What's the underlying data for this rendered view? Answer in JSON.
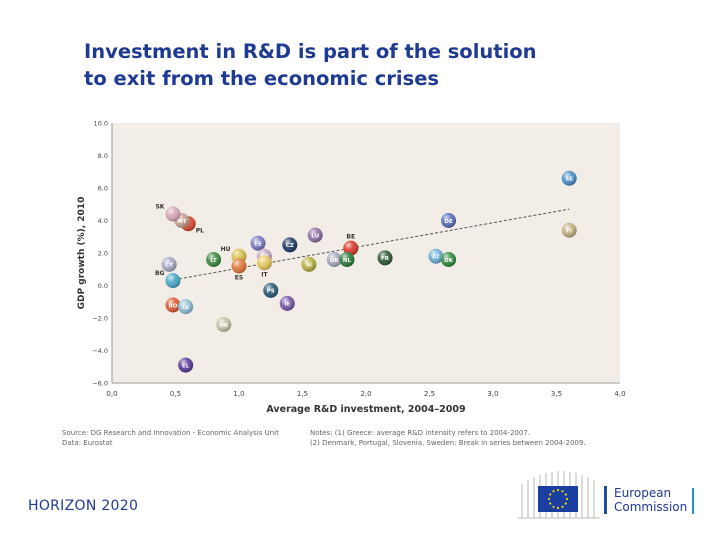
{
  "slide": {
    "title_line1": "Investment in R&D is part of the solution",
    "title_line2": "to exit from the economic crises"
  },
  "chart_data": {
    "type": "scatter",
    "title": "",
    "xlabel": "Average R&D investment, 2004–2009",
    "ylabel": "GDP growth (%), 2010",
    "xlim": [
      0,
      4
    ],
    "ylim": [
      -6,
      10
    ],
    "x_ticks": [
      "0,0",
      "0,5",
      "1,0",
      "1,5",
      "2,0",
      "2,5",
      "3,0",
      "3,5",
      "4,0"
    ],
    "y_ticks": [
      "−6.0",
      "−4.0",
      "−2.0",
      "0.0",
      "2.0",
      "4.0",
      "6.0",
      "8.0",
      "10.0"
    ],
    "grid": false,
    "legend": "none",
    "trendline": {
      "x": [
        0.45,
        3.6
      ],
      "y": [
        0.3,
        4.7
      ]
    },
    "points": [
      {
        "label": "SE",
        "x": 3.6,
        "y": 6.6,
        "color": "#4a90c8",
        "label_pos": "inside"
      },
      {
        "label": "FI",
        "x": 3.6,
        "y": 3.4,
        "color": "#c2b080",
        "label_pos": "inside"
      },
      {
        "label": "DE",
        "x": 2.65,
        "y": 4.0,
        "color": "#5870b8",
        "label_pos": "inside"
      },
      {
        "label": "AT",
        "x": 2.55,
        "y": 1.8,
        "color": "#6cb0d8",
        "label_pos": "inside"
      },
      {
        "label": "DK",
        "x": 2.65,
        "y": 1.6,
        "color": "#2e8a3e",
        "label_pos": "inside"
      },
      {
        "label": "FR",
        "x": 2.15,
        "y": 1.7,
        "color": "#2f5a38",
        "label_pos": "inside"
      },
      {
        "label": "BE",
        "x": 1.88,
        "y": 2.3,
        "color": "#d83828",
        "label_pos": "above"
      },
      {
        "label": "UK",
        "x": 1.75,
        "y": 1.6,
        "color": "#a8a8c0",
        "label_pos": "inside"
      },
      {
        "label": "NL",
        "x": 1.85,
        "y": 1.6,
        "color": "#2a7a3a",
        "label_pos": "inside"
      },
      {
        "label": "SI",
        "x": 1.55,
        "y": 1.3,
        "color": "#b8b040",
        "label_pos": "inside"
      },
      {
        "label": "LU",
        "x": 1.6,
        "y": 3.1,
        "color": "#9070a8",
        "label_pos": "inside"
      },
      {
        "label": "CZ",
        "x": 1.4,
        "y": 2.5,
        "color": "#1f3868",
        "label_pos": "inside"
      },
      {
        "label": "EE",
        "x": 1.15,
        "y": 2.6,
        "color": "#7878c0",
        "label_pos": "inside"
      },
      {
        "label": "PT",
        "x": 1.2,
        "y": 1.8,
        "color": "#c8a8c8",
        "label_pos": "inside"
      },
      {
        "label": "HU",
        "x": 1.0,
        "y": 1.8,
        "color": "#d8c050",
        "label_pos": "left"
      },
      {
        "label": "IT",
        "x": 1.2,
        "y": 1.4,
        "color": "#e8c860",
        "label_pos": "below"
      },
      {
        "label": "LT",
        "x": 0.8,
        "y": 1.6,
        "color": "#3a8a3a",
        "label_pos": "inside"
      },
      {
        "label": "ES",
        "x": 1.0,
        "y": 1.2,
        "color": "#e07838",
        "label_pos": "below"
      },
      {
        "label": "IE",
        "x": 1.38,
        "y": -1.1,
        "color": "#7a5aa8",
        "label_pos": "inside"
      },
      {
        "label": "PL",
        "x": 0.6,
        "y": 3.8,
        "color": "#d84830",
        "label_pos": "right"
      },
      {
        "label": "MT",
        "x": 0.55,
        "y": 4.0,
        "color": "#c8a090",
        "label_pos": "inside"
      },
      {
        "label": "SK",
        "x": 0.48,
        "y": 4.4,
        "color": "#d8a8b8",
        "label_pos": "left"
      },
      {
        "label": "CY",
        "x": 0.45,
        "y": 1.3,
        "color": "#a8a8c8",
        "label_pos": "inside"
      },
      {
        "label": "BG",
        "x": 0.48,
        "y": 0.3,
        "color": "#48a8c8",
        "label_pos": "left"
      },
      {
        "label": "PS",
        "x": 1.25,
        "y": -0.3,
        "color": "#2a5a7a",
        "label_pos": "inside"
      },
      {
        "label": "RO",
        "x": 0.48,
        "y": -1.2,
        "color": "#e05a30",
        "label_pos": "inside"
      },
      {
        "label": "LV",
        "x": 0.58,
        "y": -1.3,
        "color": "#90c0d8",
        "label_pos": "inside"
      },
      {
        "label": "HR",
        "x": 0.88,
        "y": -2.4,
        "color": "#c8c0a8",
        "label_pos": "inside"
      },
      {
        "label": "EL",
        "x": 0.58,
        "y": -4.9,
        "color": "#5a3a98",
        "label_pos": "inside"
      }
    ]
  },
  "footnotes": {
    "source_line1": "Source: DG Research and Innovation - Economic Analysis Unit",
    "source_line2": "Data: Eurostat",
    "notes_line1": "Notes: (1) Greece: average R&D intensity refers to 2004-2007.",
    "notes_line2": "(2) Denmark, Portugal, Slovenia, Sweden: Break in series between 2004-2009."
  },
  "footer": {
    "horizon": "HORIZON 2020",
    "ec_line1": "European",
    "ec_line2": "Commission"
  },
  "colors": {
    "title": "#1f3a93",
    "plot_background": "#f2ede6",
    "eu_flag": "#1a3fa0",
    "eu_stars": "#f7d500"
  }
}
